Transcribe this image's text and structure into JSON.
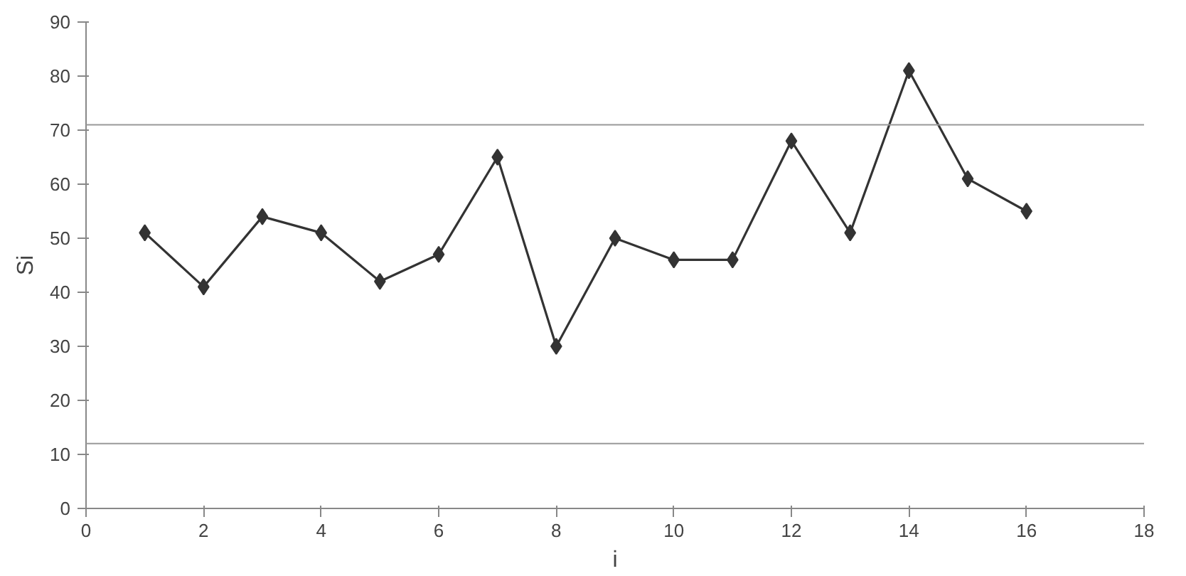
{
  "chart_data": {
    "type": "line",
    "xlabel": "i",
    "ylabel": "Si",
    "x": [
      1,
      2,
      3,
      4,
      5,
      6,
      7,
      8,
      9,
      10,
      11,
      12,
      13,
      14,
      15,
      16
    ],
    "series": [
      {
        "color": "#333333",
        "values": [
          51,
          41,
          54,
          51,
          42,
          47,
          65,
          30,
          50,
          46,
          46,
          68,
          51,
          81,
          61,
          55
        ]
      }
    ],
    "marker": "diamond",
    "line_style": "solid",
    "grid": false,
    "xlim": [
      0,
      18
    ],
    "xticks": [
      0,
      2,
      4,
      6,
      8,
      10,
      12,
      14,
      16,
      18
    ],
    "ylim": [
      0,
      90
    ],
    "yticks": [
      0,
      10,
      20,
      30,
      40,
      50,
      60,
      70,
      80,
      90
    ],
    "ref_lines": [
      {
        "axis": "y",
        "value": 71,
        "color": "#999999"
      },
      {
        "axis": "y",
        "value": 12,
        "color": "#999999"
      }
    ]
  }
}
